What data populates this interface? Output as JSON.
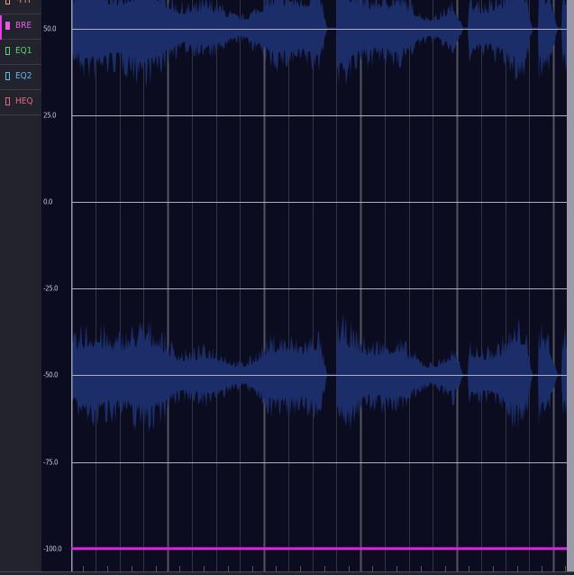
{
  "tracks": [
    {
      "label": "*PIT",
      "color": "#e89a70",
      "selected": false
    },
    {
      "label": "BRE",
      "color": "#e060e0",
      "selected": true
    },
    {
      "label": "EQ1",
      "color": "#60d070",
      "selected": false
    },
    {
      "label": "EQ2",
      "color": "#60b8e8",
      "selected": false
    },
    {
      "label": "HEQ",
      "color": "#e06a80",
      "selected": false
    }
  ],
  "y_axis": {
    "ticks": [
      "50.0",
      "25.0",
      "0.0",
      "-25.0",
      "-50.0",
      "-75.0",
      "-100.0"
    ],
    "values": [
      50,
      25,
      0,
      -25,
      -50,
      -75,
      -100
    ]
  },
  "curve": {
    "parameter": "BRE",
    "value": -100,
    "color": "#e020e0"
  },
  "colors": {
    "background": "#0b0c20",
    "waveform": "#1c2e6a",
    "grid_major": "#b0b0bc",
    "grid_minor": "#33333f"
  }
}
